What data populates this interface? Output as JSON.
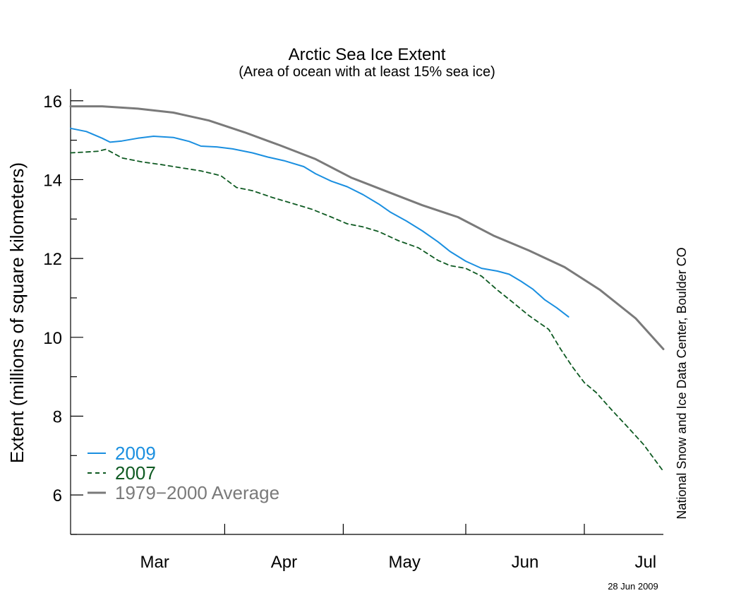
{
  "chart_data": {
    "type": "line",
    "title": "Arctic Sea Ice Extent",
    "subtitle": "(Area of ocean with at least 15% sea ice)",
    "ylabel": "Extent (millions of square kilometers)",
    "xlabel": "",
    "credit": "National Snow and Ice Data Center, Boulder CO",
    "date_stamp": "28 Jun 2009",
    "ylim": [
      5,
      16.3
    ],
    "xlim": [
      "2009-02-21",
      "2009-07-21"
    ],
    "y_ticks": [
      6,
      8,
      10,
      12,
      14,
      16
    ],
    "month_labels": [
      "Mar",
      "Apr",
      "May",
      "Jun",
      "Jul"
    ],
    "grid": false,
    "legend_position": "bottom-left",
    "series": [
      {
        "name": "2009",
        "color": "#1a8fe0",
        "dash": "solid",
        "x": [
          "2009-02-21",
          "2009-02-25",
          "2009-03-01",
          "2009-03-03",
          "2009-03-06",
          "2009-03-10",
          "2009-03-14",
          "2009-03-19",
          "2009-03-23",
          "2009-03-26",
          "2009-03-30",
          "2009-04-03",
          "2009-04-08",
          "2009-04-12",
          "2009-04-16",
          "2009-04-21",
          "2009-04-24",
          "2009-04-28",
          "2009-05-02",
          "2009-05-06",
          "2009-05-10",
          "2009-05-13",
          "2009-05-17",
          "2009-05-21",
          "2009-05-25",
          "2009-05-28",
          "2009-06-01",
          "2009-06-05",
          "2009-06-09",
          "2009-06-12",
          "2009-06-15",
          "2009-06-18",
          "2009-06-21",
          "2009-06-24",
          "2009-06-27"
        ],
        "values": [
          15.3,
          15.22,
          15.05,
          14.95,
          14.98,
          15.05,
          15.1,
          15.07,
          14.97,
          14.85,
          14.83,
          14.78,
          14.68,
          14.57,
          14.48,
          14.33,
          14.15,
          13.96,
          13.82,
          13.62,
          13.38,
          13.17,
          12.95,
          12.7,
          12.42,
          12.18,
          11.93,
          11.75,
          11.68,
          11.6,
          11.42,
          11.22,
          10.95,
          10.75,
          10.52
        ]
      },
      {
        "name": "2007",
        "color": "#0e5a22",
        "dash": "dashed",
        "x": [
          "2009-02-21",
          "2009-02-25",
          "2009-02-28",
          "2009-03-02",
          "2009-03-06",
          "2009-03-11",
          "2009-03-16",
          "2009-03-21",
          "2009-03-26",
          "2009-03-31",
          "2009-04-04",
          "2009-04-08",
          "2009-04-13",
          "2009-04-18",
          "2009-04-23",
          "2009-04-28",
          "2009-05-02",
          "2009-05-06",
          "2009-05-10",
          "2009-05-15",
          "2009-05-20",
          "2009-05-25",
          "2009-05-28",
          "2009-06-01",
          "2009-06-05",
          "2009-06-09",
          "2009-06-13",
          "2009-06-17",
          "2009-06-22",
          "2009-06-25",
          "2009-06-28",
          "2009-07-01",
          "2009-07-04",
          "2009-07-08",
          "2009-07-12",
          "2009-07-16",
          "2009-07-21"
        ],
        "values": [
          14.68,
          14.7,
          14.72,
          14.77,
          14.55,
          14.45,
          14.38,
          14.3,
          14.22,
          14.1,
          13.8,
          13.72,
          13.55,
          13.4,
          13.25,
          13.05,
          12.88,
          12.8,
          12.68,
          12.45,
          12.27,
          11.95,
          11.82,
          11.75,
          11.55,
          11.2,
          10.88,
          10.55,
          10.2,
          9.7,
          9.25,
          8.85,
          8.6,
          8.15,
          7.72,
          7.28,
          6.6
        ]
      },
      {
        "name": "1979−2000 Average",
        "color": "#7a7a7a",
        "dash": "solid",
        "x": [
          "2009-02-21",
          "2009-03-01",
          "2009-03-10",
          "2009-03-19",
          "2009-03-28",
          "2009-04-06",
          "2009-04-15",
          "2009-04-24",
          "2009-05-03",
          "2009-05-12",
          "2009-05-21",
          "2009-05-30",
          "2009-06-08",
          "2009-06-17",
          "2009-06-26",
          "2009-07-05",
          "2009-07-14",
          "2009-07-21"
        ],
        "values": [
          15.86,
          15.86,
          15.8,
          15.7,
          15.5,
          15.2,
          14.87,
          14.52,
          14.05,
          13.7,
          13.35,
          13.05,
          12.58,
          12.2,
          11.78,
          11.2,
          10.48,
          9.7
        ]
      }
    ]
  }
}
